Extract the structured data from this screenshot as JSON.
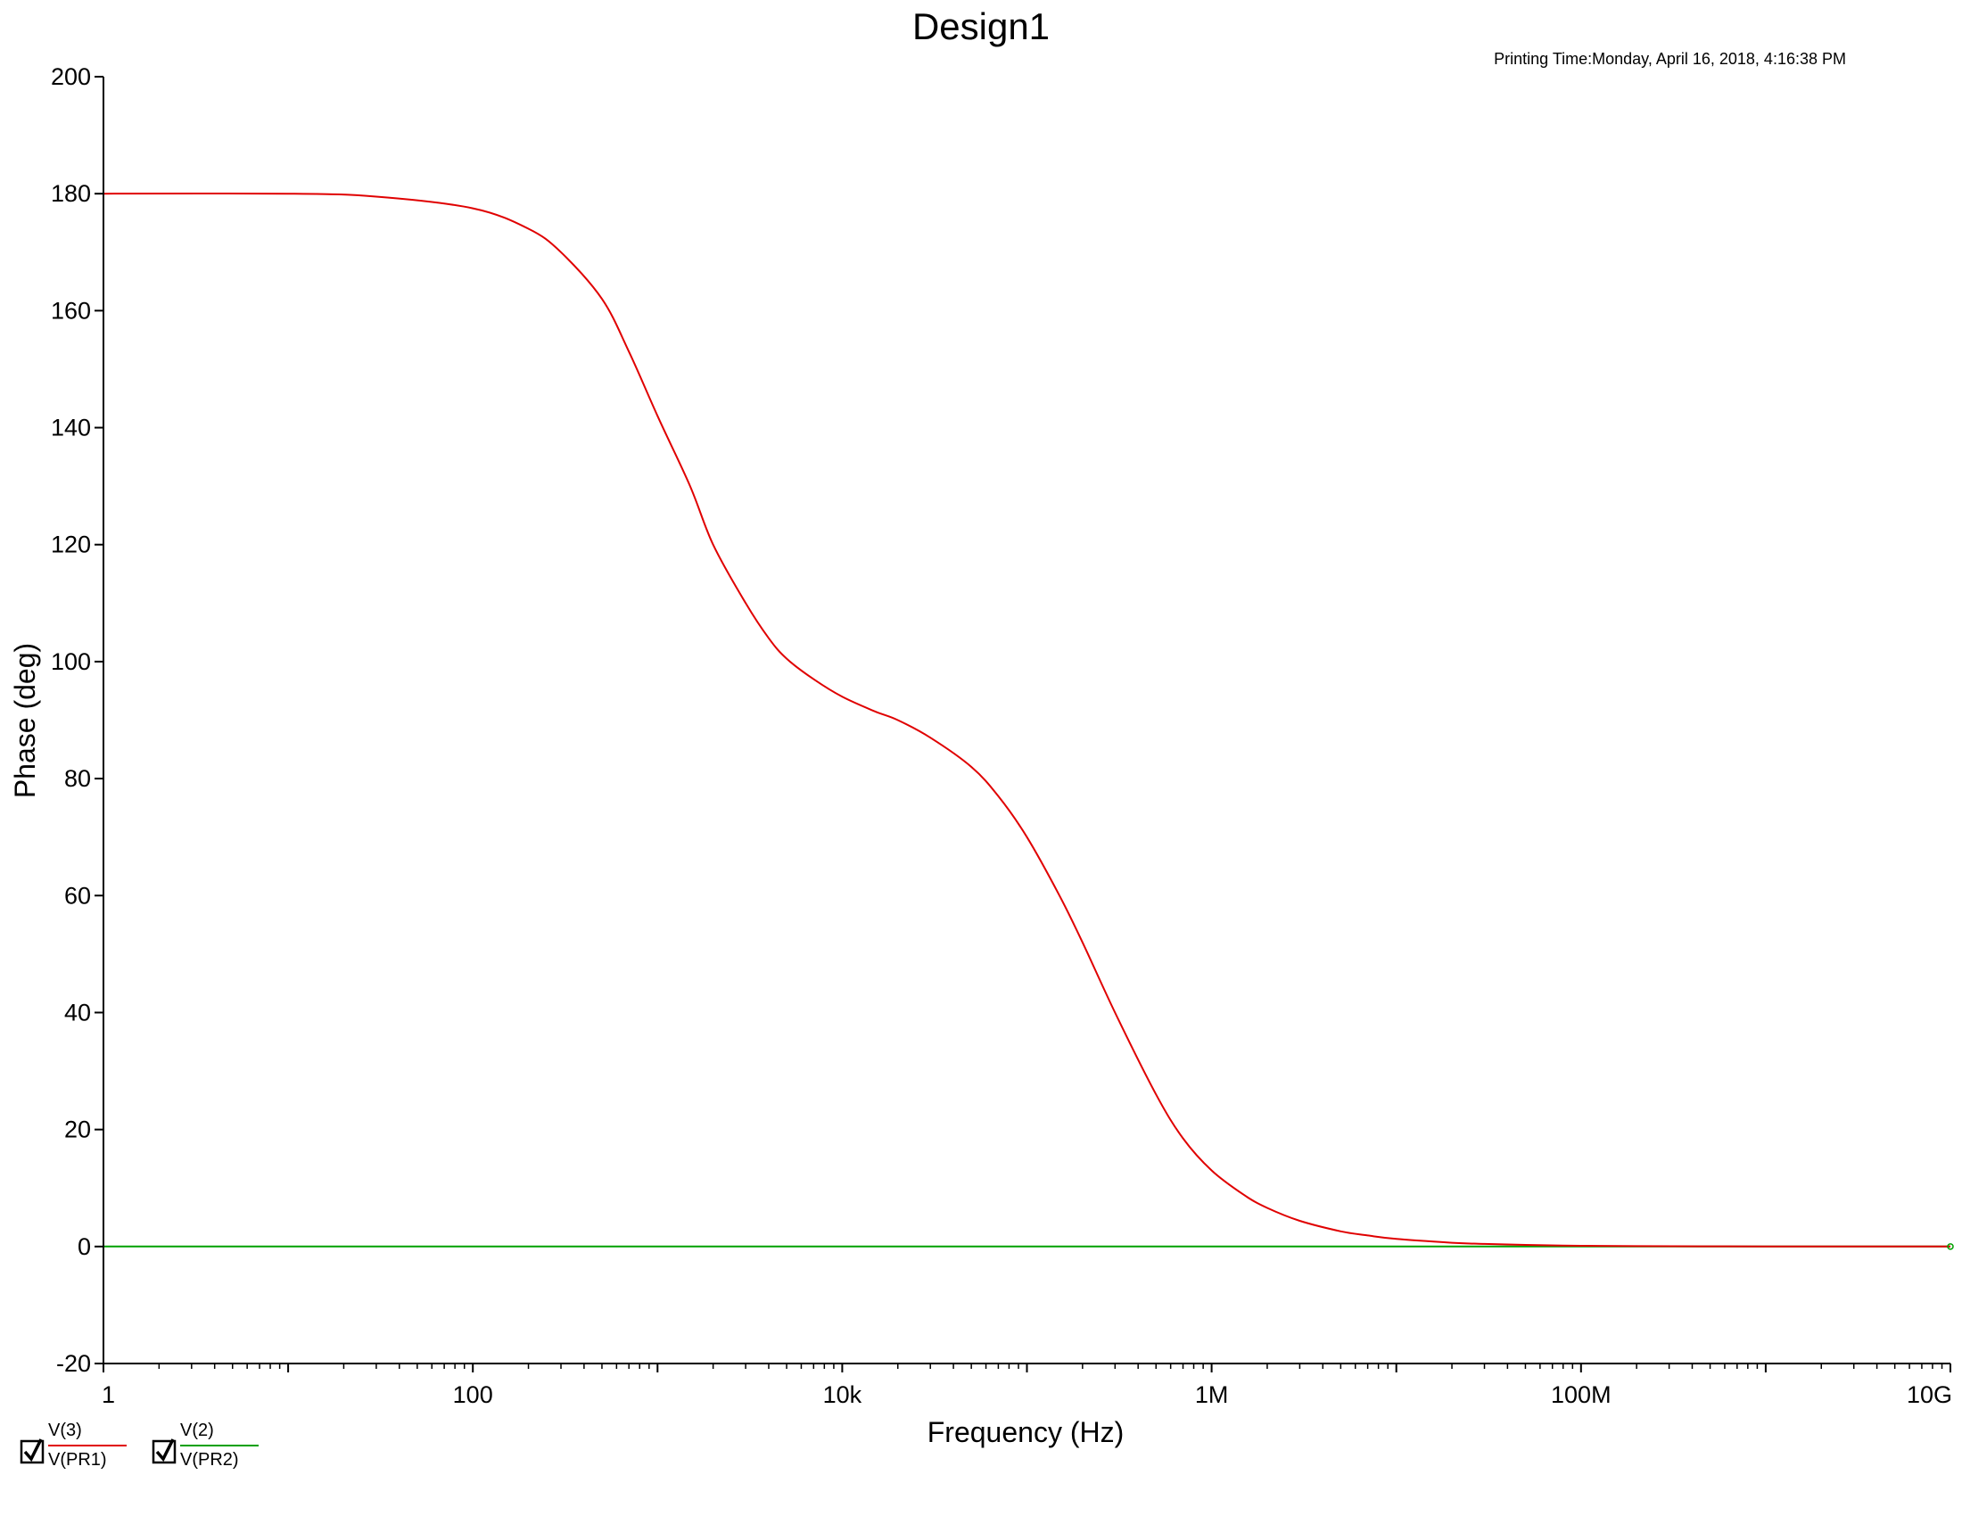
{
  "chart_data": {
    "type": "line",
    "title": "Design1",
    "printing_time": "Printing Time:Monday, April 16, 2018, 4:16:38 PM",
    "xlabel": "Frequency (Hz)",
    "ylabel": "Phase (deg)",
    "x_scale": "log",
    "xlim": [
      1,
      10000000000
    ],
    "ylim": [
      -20,
      200
    ],
    "x_ticks": [
      {
        "value": 1,
        "label": "1"
      },
      {
        "value": 100,
        "label": "100"
      },
      {
        "value": 10000,
        "label": "10k"
      },
      {
        "value": 1000000,
        "label": "1M"
      },
      {
        "value": 100000000,
        "label": "100M"
      },
      {
        "value": 10000000000,
        "label": "10G"
      }
    ],
    "y_ticks": [
      {
        "value": 200,
        "label": "200"
      },
      {
        "value": 180,
        "label": "180"
      },
      {
        "value": 160,
        "label": "160"
      },
      {
        "value": 140,
        "label": "140"
      },
      {
        "value": 120,
        "label": "120"
      },
      {
        "value": 100,
        "label": "100"
      },
      {
        "value": 80,
        "label": "80"
      },
      {
        "value": 60,
        "label": "60"
      },
      {
        "value": 40,
        "label": "40"
      },
      {
        "value": 20,
        "label": "20"
      },
      {
        "value": 0,
        "label": "0"
      },
      {
        "value": -20,
        "label": "-20"
      }
    ],
    "grid": false,
    "legend_position": "bottom-left",
    "series": [
      {
        "name": "V(3)/V(PR1)",
        "legend_top": "V(3)",
        "legend_bottom": "V(PR1)",
        "color": "#e00000",
        "x": [
          1,
          10,
          30,
          100,
          200,
          300,
          500,
          700,
          1000,
          1500,
          2000,
          3000,
          4000,
          5000,
          7000,
          10000,
          15000,
          20000,
          30000,
          50000,
          70000,
          100000,
          150000,
          200000,
          300000,
          500000,
          700000,
          1000000,
          1500000,
          2000000,
          3000000,
          5000000,
          7000000,
          10000000,
          20000000,
          30000000,
          50000000,
          100000000,
          200000000,
          500000000,
          1000000000,
          10000000000
        ],
        "y": [
          180,
          180,
          179.5,
          177.5,
          174,
          170,
          162,
          153,
          142,
          130,
          120,
          110,
          104,
          100.5,
          97,
          94,
          91.5,
          90,
          87,
          82,
          77,
          70,
          60,
          52,
          40,
          26,
          18.5,
          13,
          8.8,
          6.6,
          4.4,
          2.6,
          1.9,
          1.3,
          0.65,
          0.45,
          0.27,
          0.13,
          0.07,
          0.03,
          0.015,
          0
        ]
      },
      {
        "name": "V(2)/V(PR2)",
        "legend_top": "V(2)",
        "legend_bottom": "V(PR2)",
        "color": "#00a000",
        "x": [
          1,
          10000000000
        ],
        "y": [
          0,
          0
        ]
      }
    ]
  }
}
